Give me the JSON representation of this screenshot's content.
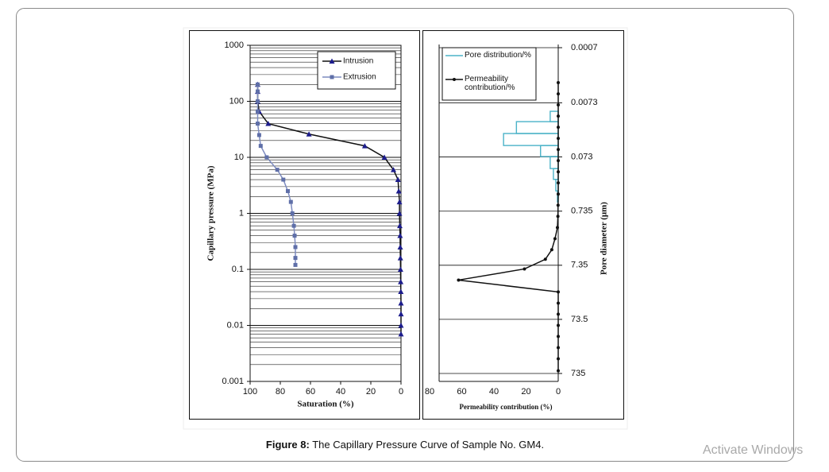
{
  "chart_data": [
    {
      "type": "line",
      "xlabel": "Saturation (%)",
      "ylabel": "Capillary pressure (MPa)",
      "xlim": [
        100,
        0
      ],
      "xticks": [
        100,
        80,
        60,
        40,
        20,
        0
      ],
      "ylim": [
        0.001,
        1000
      ],
      "yticks": [
        0.001,
        0.01,
        0.1,
        1,
        10,
        100,
        1000
      ],
      "ylog": true,
      "grid": true,
      "minor_grid": true,
      "legend": "upper right",
      "series": [
        {
          "name": "Intrusion",
          "color": "#1c1c8c",
          "line_color": "#111111",
          "marker": "triangle",
          "x": [
            95,
            95,
            95,
            94,
            88,
            61,
            24,
            11,
            5,
            2,
            1.5,
            1,
            1,
            0.8,
            0.6,
            0.5,
            0.4,
            0.3,
            0.2,
            0.1,
            0,
            0,
            0,
            0
          ],
          "values": [
            200,
            150,
            100,
            66,
            40,
            26,
            16,
            10,
            6,
            4,
            2.5,
            1.6,
            1,
            0.6,
            0.4,
            0.25,
            0.16,
            0.1,
            0.06,
            0.04,
            0.025,
            0.016,
            0.01,
            0.007
          ]
        },
        {
          "name": "Extrusion",
          "color": "#5f6fa8",
          "line_color": "#7d8bbf",
          "marker": "square",
          "x": [
            95,
            95,
            95,
            95,
            95,
            94,
            93,
            89,
            82,
            78,
            75,
            73,
            72,
            71,
            70.5,
            70,
            70,
            70
          ],
          "values": [
            200,
            150,
            100,
            66,
            40,
            25,
            16,
            10,
            6,
            4,
            2.5,
            1.6,
            1,
            0.6,
            0.4,
            0.25,
            0.16,
            0.12
          ]
        }
      ]
    },
    {
      "type": "histogram-line",
      "xlabel": "Permeability contribution (%)",
      "y2label": "Pore diameter (μm)",
      "xlim": [
        80,
        0
      ],
      "xticks": [
        80,
        60,
        40,
        20,
        0
      ],
      "ylim": [
        735,
        0.0007
      ],
      "yticks": [
        0.0007,
        0.0073,
        0.073,
        0.735,
        7.35,
        73.5,
        735
      ],
      "ylog": true,
      "grid": true,
      "legend": "upper left",
      "series": [
        {
          "name": "Pore distribution/%",
          "color": "#4bb3c8",
          "kind": "step",
          "bins": [
            0.0105,
            0.0163,
            0.027,
            0.045,
            0.072,
            0.12,
            0.19,
            0.31,
            0.5
          ],
          "values": [
            5,
            26,
            34,
            11,
            5,
            3,
            1.5,
            0.5
          ]
        },
        {
          "name": "Permeability contribution/%",
          "color": "#111111",
          "kind": "line",
          "y": [
            0.0031,
            0.005,
            0.008,
            0.0129,
            0.0207,
            0.0332,
            0.0533,
            0.0857,
            0.138,
            0.221,
            0.356,
            0.571,
            0.918,
            1.48,
            2.37,
            3.8,
            5.7,
            8.6,
            13.8,
            22.9,
            36.8,
            59,
            95,
            152,
            245,
            394,
            655
          ],
          "values": [
            0,
            0,
            0,
            0,
            0,
            0,
            0,
            0,
            0,
            0,
            0,
            0.1,
            0.2,
            0.5,
            2,
            4,
            8,
            21,
            62,
            0,
            0,
            0,
            0,
            0,
            0,
            0,
            0
          ]
        }
      ]
    }
  ],
  "caption": {
    "label": "Figure 8:",
    "text": " The Capillary Pressure Curve of Sample No. GM4."
  },
  "watermark": "Activate Windows"
}
